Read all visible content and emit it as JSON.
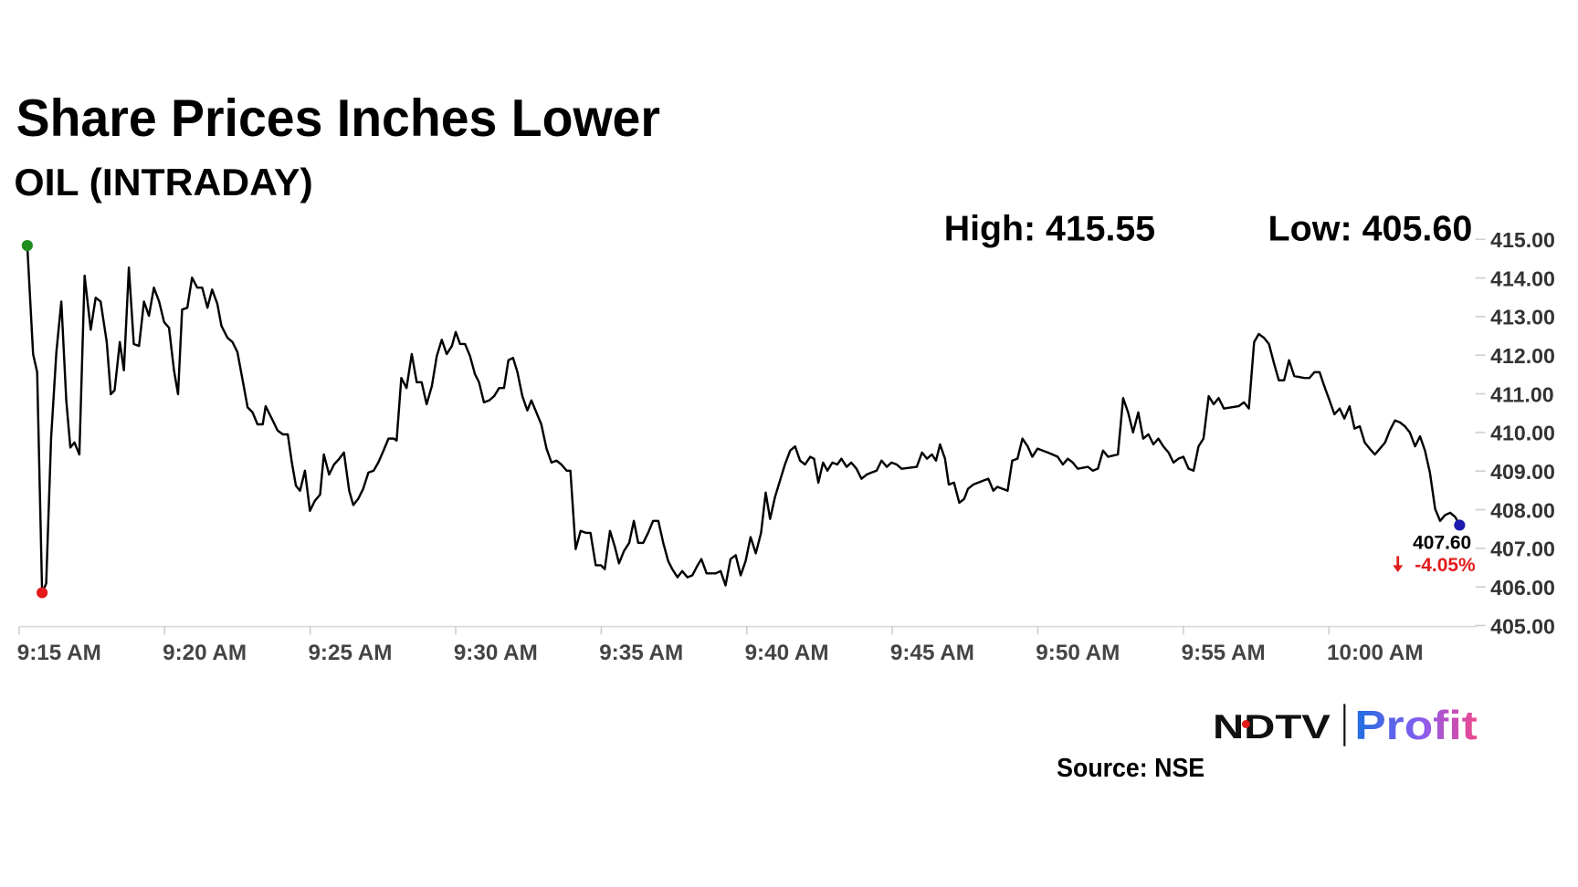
{
  "chart_data": {
    "type": "line",
    "title": "Share Prices Inches Lower",
    "subtitle": "OIL (INTRADAY)",
    "high_label": "High: 415.55",
    "low_label": "Low: 405.60",
    "last_price_label": "407.60",
    "change_label": "-4.05%",
    "source": "Source: NSE",
    "logo": {
      "left": "NDTV",
      "right": "Profit"
    },
    "color": "#000000",
    "start_marker_color": "#1e8c1e",
    "low_marker_color": "#e31b1b",
    "end_marker_color": "#1b1bb0",
    "grid": false,
    "xlim": [
      555,
      605.1
    ],
    "ylim": [
      405,
      415
    ],
    "xticks": [
      {
        "value": 555,
        "label": "9:15 AM"
      },
      {
        "value": 560,
        "label": "9:20 AM"
      },
      {
        "value": 565,
        "label": "9:25 AM"
      },
      {
        "value": 570,
        "label": "9:30 AM"
      },
      {
        "value": 575,
        "label": "9:35 AM"
      },
      {
        "value": 580,
        "label": "9:40 AM"
      },
      {
        "value": 585,
        "label": "9:45 AM"
      },
      {
        "value": 590,
        "label": "9:50 AM"
      },
      {
        "value": 595,
        "label": "9:55 AM"
      },
      {
        "value": 600,
        "label": "10:00 AM"
      }
    ],
    "yticks": [
      {
        "value": 405,
        "label": "405.00"
      },
      {
        "value": 406,
        "label": "406.00"
      },
      {
        "value": 407,
        "label": "407.00"
      },
      {
        "value": 408,
        "label": "408.00"
      },
      {
        "value": 409,
        "label": "409.00"
      },
      {
        "value": 410,
        "label": "410.00"
      },
      {
        "value": 411,
        "label": "411.00"
      },
      {
        "value": 412,
        "label": "412.00"
      },
      {
        "value": 413,
        "label": "413.00"
      },
      {
        "value": 414,
        "label": "414.00"
      },
      {
        "value": 415,
        "label": "415.00"
      }
    ],
    "x": [
      555.28,
      555.48,
      555.62,
      555.79,
      555.93,
      556.1,
      556.28,
      556.45,
      556.62,
      556.76,
      556.9,
      557.07,
      557.25,
      557.46,
      557.63,
      557.8,
      558.01,
      558.15,
      558.28,
      558.46,
      558.6,
      558.77,
      558.94,
      559.12,
      559.29,
      559.46,
      559.63,
      559.81,
      559.98,
      560.15,
      560.32,
      560.46,
      560.6,
      560.78,
      560.94,
      561.12,
      561.29,
      561.47,
      561.63,
      561.81,
      561.95,
      562.16,
      562.33,
      562.5,
      562.68,
      562.85,
      563.02,
      563.19,
      563.37,
      563.47,
      563.68,
      563.88,
      564.06,
      564.23,
      564.37,
      564.51,
      564.65,
      564.82,
      564.99,
      565.16,
      565.34,
      565.47,
      565.65,
      565.82,
      566.0,
      566.16,
      566.34,
      566.48,
      566.65,
      566.82,
      567.0,
      567.18,
      567.34,
      567.52,
      567.69,
      567.87,
      567.97,
      568.13,
      568.31,
      568.49,
      568.66,
      568.83,
      569.0,
      569.18,
      569.35,
      569.52,
      569.69,
      569.87,
      570.0,
      570.15,
      570.32,
      570.49,
      570.66,
      570.8,
      570.97,
      571.15,
      571.32,
      571.49,
      571.66,
      571.81,
      571.97,
      572.12,
      572.29,
      572.46,
      572.6,
      572.77,
      572.94,
      573.12,
      573.29,
      573.46,
      573.63,
      573.81,
      573.94,
      574.12,
      574.29,
      574.47,
      574.63,
      574.81,
      574.99,
      575.12,
      575.3,
      575.47,
      575.61,
      575.78,
      575.96,
      576.12,
      576.27,
      576.44,
      576.61,
      576.78,
      576.96,
      577.13,
      577.3,
      577.44,
      577.62,
      577.78,
      577.96,
      578.13,
      578.31,
      578.44,
      578.62,
      578.78,
      578.93,
      579.1,
      579.27,
      579.44,
      579.62,
      579.79,
      579.96,
      580.13,
      580.31,
      580.49,
      580.65,
      580.8,
      580.97,
      581.14,
      581.31,
      581.49,
      581.66,
      581.83,
      582.0,
      582.18,
      582.31,
      582.46,
      582.62,
      582.77,
      582.94,
      583.11,
      583.25,
      583.43,
      583.59,
      583.77,
      583.94,
      584.12,
      584.28,
      584.46,
      584.63,
      584.81,
      584.97,
      585.15,
      585.32,
      585.84,
      586.02,
      586.19,
      586.36,
      586.5,
      586.64,
      586.81,
      586.94,
      587.12,
      587.3,
      587.47,
      587.6,
      587.78,
      588.12,
      588.3,
      588.47,
      588.61,
      588.96,
      589.12,
      589.3,
      589.47,
      589.65,
      589.81,
      589.99,
      590.34,
      590.5,
      590.68,
      590.86,
      591.03,
      591.2,
      591.37,
      591.72,
      591.89,
      592.06,
      592.24,
      592.41,
      592.75,
      592.93,
      593.1,
      593.27,
      593.45,
      593.62,
      593.8,
      593.97,
      594.14,
      594.31,
      594.49,
      594.66,
      594.83,
      595.0,
      595.18,
      595.35,
      595.52,
      595.69,
      595.87,
      596.04,
      596.21,
      596.39,
      596.9,
      597.08,
      597.25,
      597.43,
      597.59,
      597.77,
      597.94,
      598.12,
      598.28,
      598.46,
      598.63,
      598.81,
      599.15,
      599.33,
      599.5,
      599.68,
      599.84,
      600.02,
      600.19,
      600.37,
      600.53,
      600.71,
      600.88,
      601.06,
      601.23,
      601.4,
      601.58,
      601.75,
      601.93,
      602.09,
      602.27,
      602.44,
      602.61,
      602.78,
      602.96,
      603.13,
      603.3,
      603.47,
      603.65,
      603.82,
      603.99,
      604.17,
      604.34,
      604.49
    ],
    "values": [
      414.84,
      412.03,
      411.56,
      405.85,
      406.09,
      409.87,
      412.08,
      413.39,
      410.83,
      409.61,
      409.74,
      409.43,
      414.06,
      412.66,
      413.49,
      413.39,
      412.34,
      410.99,
      411.09,
      412.34,
      411.61,
      414.27,
      412.29,
      412.24,
      413.39,
      413.02,
      413.75,
      413.39,
      412.86,
      412.71,
      411.61,
      410.99,
      413.18,
      413.23,
      414.01,
      413.75,
      413.75,
      413.23,
      413.7,
      413.33,
      412.76,
      412.45,
      412.34,
      412.08,
      411.35,
      410.65,
      410.52,
      410.21,
      410.21,
      410.68,
      410.36,
      410.05,
      409.95,
      409.95,
      409.22,
      408.62,
      408.49,
      409.01,
      407.97,
      408.23,
      408.39,
      409.43,
      408.91,
      409.17,
      409.32,
      409.48,
      408.49,
      408.12,
      408.28,
      408.54,
      408.96,
      409.01,
      409.22,
      409.53,
      409.84,
      409.84,
      409.79,
      411.41,
      411.15,
      412.03,
      411.3,
      411.3,
      410.73,
      411.2,
      411.98,
      412.4,
      412.03,
      412.24,
      412.6,
      412.29,
      412.29,
      411.98,
      411.51,
      411.3,
      410.78,
      410.83,
      410.94,
      411.15,
      411.15,
      411.87,
      411.93,
      411.56,
      410.94,
      410.57,
      410.83,
      410.52,
      410.21,
      409.58,
      409.22,
      409.27,
      409.17,
      409.01,
      409.01,
      406.98,
      407.45,
      407.4,
      407.4,
      406.56,
      406.56,
      406.46,
      407.45,
      407.03,
      406.61,
      406.93,
      407.14,
      407.71,
      407.14,
      407.14,
      407.4,
      407.71,
      407.71,
      407.14,
      406.67,
      406.46,
      406.25,
      406.41,
      406.25,
      406.3,
      406.56,
      406.72,
      406.35,
      406.35,
      406.35,
      406.41,
      406.04,
      406.72,
      406.82,
      406.3,
      406.67,
      407.29,
      406.87,
      407.4,
      408.44,
      407.76,
      408.33,
      408.75,
      409.17,
      409.53,
      409.64,
      409.27,
      409.17,
      409.37,
      409.32,
      408.7,
      409.22,
      409.01,
      409.22,
      409.17,
      409.32,
      409.11,
      409.22,
      409.06,
      408.8,
      408.91,
      408.96,
      409.01,
      409.27,
      409.11,
      409.22,
      409.17,
      409.06,
      409.11,
      409.48,
      409.32,
      409.43,
      409.27,
      409.69,
      409.32,
      408.65,
      408.7,
      408.18,
      408.28,
      408.54,
      408.65,
      408.75,
      408.8,
      408.49,
      408.59,
      408.49,
      409.27,
      409.32,
      409.84,
      409.64,
      409.37,
      409.58,
      409.48,
      409.43,
      409.37,
      409.17,
      409.32,
      409.22,
      409.06,
      409.11,
      409.01,
      409.06,
      409.53,
      409.37,
      409.43,
      410.89,
      410.52,
      410.0,
      410.52,
      409.84,
      409.95,
      409.69,
      409.84,
      409.64,
      409.48,
      409.22,
      409.32,
      409.37,
      409.06,
      409.01,
      409.64,
      409.84,
      410.94,
      410.73,
      410.89,
      410.62,
      410.68,
      410.78,
      410.62,
      412.34,
      412.55,
      412.45,
      412.29,
      411.77,
      411.35,
      411.35,
      411.87,
      411.46,
      411.41,
      411.41,
      411.56,
      411.56,
      411.2,
      410.83,
      410.47,
      410.62,
      410.36,
      410.68,
      410.1,
      410.16,
      409.74,
      409.58,
      409.43,
      409.58,
      409.74,
      410.05,
      410.31,
      410.26,
      410.16,
      410.0,
      409.64,
      409.9,
      409.53,
      408.96,
      408.02,
      407.71,
      407.86,
      407.92,
      407.81,
      407.6
    ]
  }
}
